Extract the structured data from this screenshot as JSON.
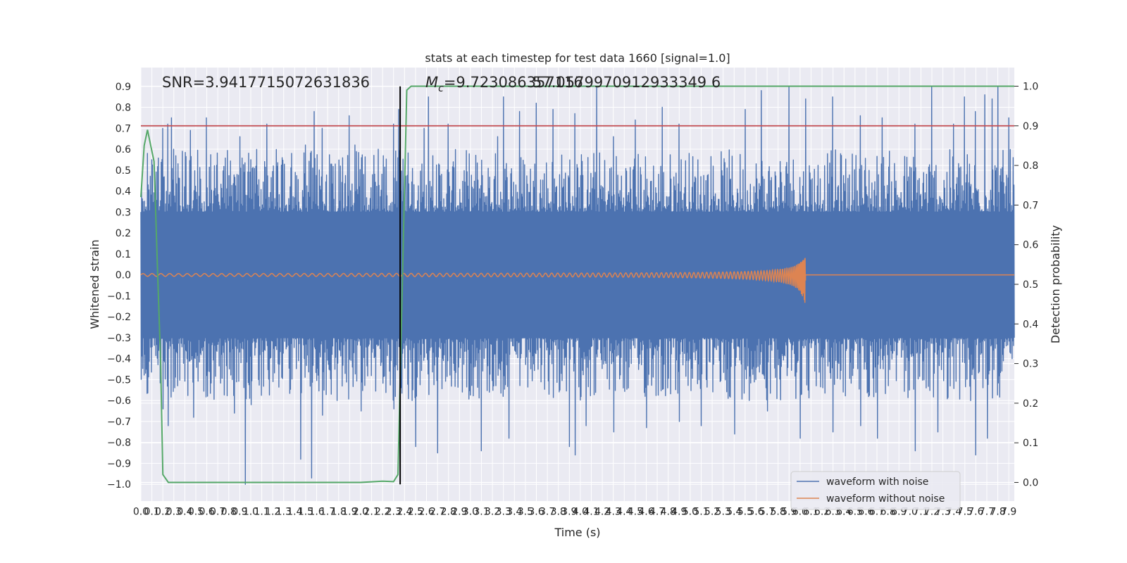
{
  "chart_data": {
    "type": "line",
    "title": "stats at each timestep for test data 1660 [signal=1.0]",
    "xlabel": "Time (s)",
    "ylabel": "Whitened strain",
    "y2label": "Detection probability",
    "xlim": [
      0.0,
      7.95
    ],
    "ylim": [
      -1.08,
      0.99
    ],
    "y2lim": [
      -0.047,
      1.047
    ],
    "x_ticks": [
      0.0,
      0.1,
      0.2,
      0.3,
      0.4,
      0.5,
      0.6,
      0.7,
      0.8,
      0.9,
      1.0,
      1.1,
      1.2,
      1.3,
      1.4,
      1.5,
      1.6,
      1.7,
      1.8,
      1.9,
      2.0,
      2.1,
      2.2,
      2.3,
      2.4,
      2.5,
      2.6,
      2.7,
      2.8,
      2.9,
      3.0,
      3.1,
      3.2,
      3.3,
      3.4,
      3.5,
      3.6,
      3.7,
      3.8,
      3.9,
      4.0,
      4.1,
      4.2,
      4.3,
      4.4,
      4.5,
      4.6,
      4.7,
      4.8,
      4.9,
      5.0,
      5.1,
      5.2,
      5.3,
      5.4,
      5.5,
      5.6,
      5.7,
      5.8,
      5.9,
      6.0,
      6.1,
      6.2,
      6.3,
      6.4,
      6.5,
      6.6,
      6.7,
      6.8,
      6.9,
      7.0,
      7.1,
      7.2,
      7.3,
      7.4,
      7.5,
      7.6,
      7.7,
      7.8,
      7.9
    ],
    "y_ticks": [
      -1.0,
      -0.9,
      -0.8,
      -0.7,
      -0.6,
      -0.5,
      -0.4,
      -0.3,
      -0.2,
      -0.1,
      0.0,
      0.1,
      0.2,
      0.3,
      0.4,
      0.5,
      0.6,
      0.7,
      0.8,
      0.9
    ],
    "y2_ticks": [
      0.0,
      0.1,
      0.2,
      0.3,
      0.4,
      0.5,
      0.6,
      0.7,
      0.8,
      0.9,
      1.0
    ],
    "grid": true,
    "legend_position": "lower-right",
    "threshold": {
      "axis": "right",
      "value": 0.9,
      "color": "#c44e52"
    },
    "marker_line": {
      "x": 2.36,
      "color": "#000000"
    },
    "annotations": {
      "snr": "SNR=3.9417715072631836",
      "mc_prefix": "M",
      "mc_sub": "c",
      "mc_value": "=9.723086357116",
      "overlap": "57.0579970912933349 6"
    },
    "series": [
      {
        "name": "waveform with noise",
        "color": "#4c72b0",
        "axis": "left",
        "envelope_typical": [
          -0.3,
          0.3
        ],
        "peaks_x": [
          0.02,
          0.06,
          0.1,
          0.2,
          0.25,
          0.28,
          0.3,
          0.45,
          0.6,
          0.9,
          1.0,
          1.15,
          1.5,
          1.58,
          1.65,
          1.9,
          1.95,
          2.3,
          2.35,
          2.58,
          2.62,
          2.8,
          3.25,
          3.3,
          3.45,
          3.6,
          3.75,
          3.95,
          4.15,
          4.3,
          4.5,
          4.75,
          4.9,
          5.5,
          5.65,
          5.9,
          6.05,
          6.3,
          6.55,
          6.75,
          7.05,
          7.2,
          7.4,
          7.5,
          7.6,
          7.68,
          7.75,
          7.8,
          7.9
        ],
        "peaks_y": [
          0.35,
          0.58,
          0.55,
          0.7,
          0.72,
          0.75,
          0.6,
          0.69,
          0.75,
          0.66,
          0.55,
          0.72,
          0.62,
          0.78,
          0.7,
          0.76,
          0.62,
          0.72,
          0.79,
          0.7,
          0.85,
          0.72,
          0.66,
          0.85,
          0.78,
          0.82,
          0.79,
          0.77,
          0.9,
          0.66,
          0.74,
          0.8,
          0.72,
          0.79,
          0.88,
          0.9,
          0.84,
          0.85,
          0.76,
          0.75,
          0.72,
          0.9,
          0.72,
          0.85,
          0.78,
          0.86,
          0.84,
          0.9,
          0.75
        ],
        "troughs_x": [
          0.05,
          0.2,
          0.25,
          0.48,
          0.85,
          0.95,
          1.0,
          1.45,
          1.55,
          1.65,
          2.0,
          2.3,
          2.5,
          2.7,
          3.1,
          3.35,
          3.9,
          3.95,
          4.05,
          4.3,
          4.6,
          4.9,
          5.1,
          5.4,
          5.7,
          6.0,
          6.3,
          6.55,
          6.7,
          7.05,
          7.25,
          7.55,
          7.6,
          7.7
        ],
        "troughs_y": [
          -0.45,
          -0.64,
          -0.72,
          -0.68,
          -0.66,
          -1.0,
          -0.62,
          -0.88,
          -0.97,
          -0.67,
          -0.65,
          -0.64,
          -0.82,
          -0.85,
          -0.84,
          -0.78,
          -0.82,
          -0.86,
          -0.72,
          -0.75,
          -0.73,
          -0.7,
          -0.72,
          -0.76,
          -0.65,
          -0.78,
          -0.75,
          -0.72,
          -0.78,
          -0.84,
          -0.75,
          -0.6,
          -0.86,
          -0.78
        ]
      },
      {
        "name": "waveform without noise",
        "color": "#dd8452",
        "axis": "left",
        "chirp": {
          "start_x": 0.0,
          "end_x": 6.05,
          "flat_after_x": 6.05,
          "amp_start": 0.005,
          "amp_end_pos": 0.11,
          "amp_end_neg": -0.15
        }
      },
      {
        "name": "Detection probability",
        "color": "#55a868",
        "axis": "right",
        "x": [
          0.0,
          0.03,
          0.06,
          0.09,
          0.12,
          0.15,
          0.18,
          0.2,
          0.25,
          0.4,
          0.8,
          1.2,
          1.6,
          1.9,
          2.0,
          2.2,
          2.3,
          2.34,
          2.38,
          2.42,
          2.46,
          2.52,
          2.6,
          3.0,
          4.0,
          5.0,
          6.0,
          7.0,
          7.95
        ],
        "values": [
          0.72,
          0.85,
          0.89,
          0.85,
          0.81,
          0.55,
          0.3,
          0.02,
          0.0,
          0.0,
          0.0,
          0.0,
          0.0,
          0.0,
          0.0,
          0.003,
          0.002,
          0.02,
          0.5,
          0.99,
          1.0,
          1.0,
          1.0,
          1.0,
          1.0,
          1.0,
          1.0,
          1.0,
          1.0
        ]
      }
    ]
  }
}
